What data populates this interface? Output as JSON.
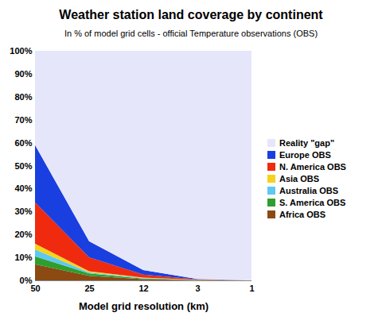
{
  "chart_data": {
    "type": "area",
    "title": "Weather station land coverage by continent",
    "subtitle": "In % of model grid cells - official Temperature observations (OBS)",
    "x_label": "Model grid resolution (km)",
    "categories": [
      "50",
      "25",
      "12",
      "3",
      "1"
    ],
    "stacked": true,
    "legend": "right",
    "grid": false,
    "ylim": [
      0,
      100
    ],
    "yticks": [
      {
        "value": 0,
        "label": "0%"
      },
      {
        "value": 10,
        "label": "10%"
      },
      {
        "value": 20,
        "label": "20%"
      },
      {
        "value": 30,
        "label": "30%"
      },
      {
        "value": 40,
        "label": "40%"
      },
      {
        "value": 50,
        "label": "50%"
      },
      {
        "value": 60,
        "label": "60%"
      },
      {
        "value": 70,
        "label": "70%"
      },
      {
        "value": 80,
        "label": "80%"
      },
      {
        "value": 90,
        "label": "90%"
      },
      {
        "value": 100,
        "label": "100%"
      }
    ],
    "series": [
      {
        "name": "Africa OBS",
        "color": "#8b4a12",
        "values": [
          7,
          2,
          0.5,
          0.1,
          0
        ]
      },
      {
        "name": "S. America OBS",
        "color": "#2e9e2e",
        "values": [
          3.5,
          1,
          0.3,
          0.05,
          0
        ]
      },
      {
        "name": "Australia  OBS",
        "color": "#5ec8f0",
        "values": [
          3,
          0.5,
          0.2,
          0.05,
          0
        ]
      },
      {
        "name": "Asia  OBS",
        "color": "#f5d31c",
        "values": [
          2.5,
          0.5,
          0.2,
          0.05,
          0
        ]
      },
      {
        "name": "N. America OBS",
        "color": "#f02a0f",
        "values": [
          18,
          6,
          1.3,
          0.15,
          0
        ]
      },
      {
        "name": "Europe OBS",
        "color": "#1a3fe0",
        "values": [
          25,
          7,
          2,
          0.2,
          0
        ]
      },
      {
        "name": "Reality \"gap\"",
        "color": "#e6e6fa",
        "values": [
          41,
          83,
          95.5,
          99.4,
          100
        ]
      }
    ]
  }
}
